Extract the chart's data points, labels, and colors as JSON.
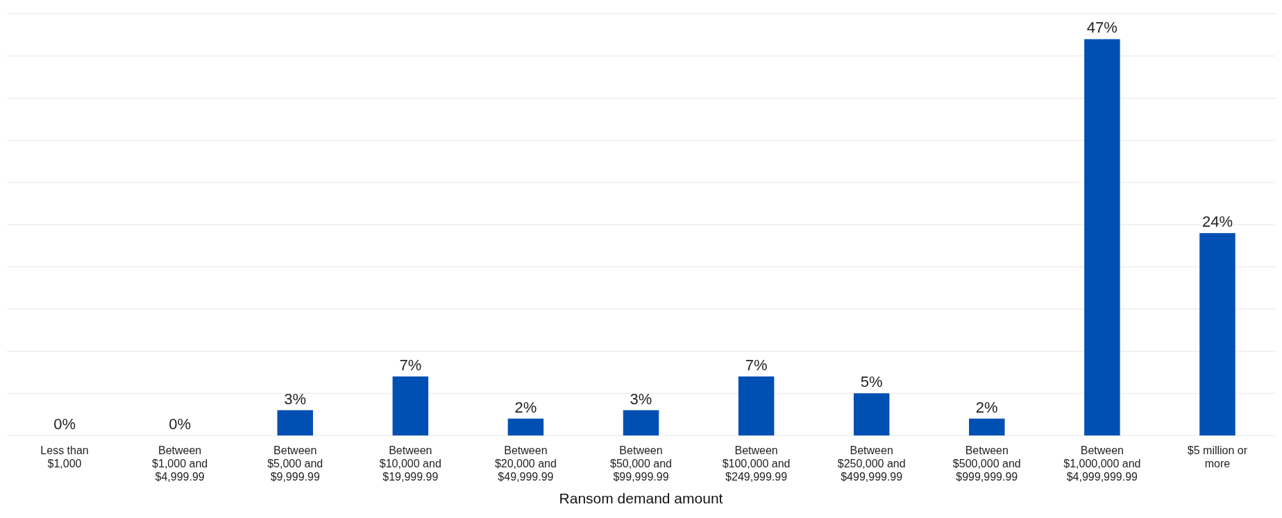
{
  "chart_data": {
    "type": "bar",
    "xlabel": "Ransom demand amount",
    "categories": [
      "Less than\n$1,000",
      "Between\n$1,000 and\n$4,999.99",
      "Between\n$5,000 and\n$9,999.99",
      "Between\n$10,000 and\n$19,999.99",
      "Between\n$20,000 and\n$49,999.99",
      "Between\n$50,000 and\n$99,999.99",
      "Between\n$100,000 and\n$249,999.99",
      "Between\n$250,000 and\n$499,999.99",
      "Between\n$500,000 and\n$999,999.99",
      "Between\n$1,000,000 and\n$4,999,999.99",
      "$5 million or\nmore"
    ],
    "values": [
      0,
      0,
      3,
      7,
      2,
      3,
      7,
      5,
      2,
      47,
      24
    ],
    "value_labels": [
      "0%",
      "0%",
      "3%",
      "7%",
      "2%",
      "3%",
      "7%",
      "5%",
      "2%",
      "47%",
      "24%"
    ],
    "color": "#0050b4",
    "ylim": [
      0,
      50
    ],
    "yticks": [
      {
        "value": 0,
        "label": null
      },
      {
        "value": 5,
        "label": null
      },
      {
        "value": 10,
        "label": null
      },
      {
        "value": 15,
        "label": null
      },
      {
        "value": 20,
        "label": null
      },
      {
        "value": 25,
        "label": null
      },
      {
        "value": 30,
        "label": null
      },
      {
        "value": 35,
        "label": null
      },
      {
        "value": 40,
        "label": null
      },
      {
        "value": 45,
        "label": null
      },
      {
        "value": 50,
        "label": null
      }
    ],
    "grid": "y",
    "tick_labels": "x"
  }
}
